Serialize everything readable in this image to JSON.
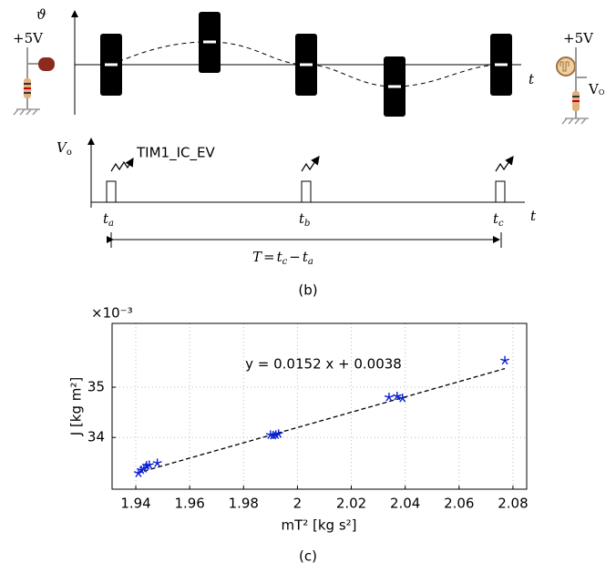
{
  "diagram": {
    "theta_axis": "ϑ",
    "t_axis_top": "t",
    "supply_left": "+5V",
    "supply_right": "+5V",
    "vo_right": {
      "base": "V",
      "sub": "O"
    },
    "vo_axis": {
      "base": "V",
      "sub": "o"
    },
    "event": "TIM1_IC_EV",
    "t_a": {
      "base": "t",
      "sub": "a"
    },
    "t_b": {
      "base": "t",
      "sub": "b"
    },
    "t_c": {
      "base": "t",
      "sub": "c"
    },
    "t_axis_bottom": "t",
    "period": [
      "T",
      "=",
      "t",
      "c",
      "−",
      "t",
      "a"
    ],
    "caption": "(b)"
  },
  "chart_data": {
    "type": "scatter",
    "scale_label": "×10⁻³",
    "equation": "y = 0.0152 x + 0.0038",
    "xlabel": "mT² [kg s²]",
    "ylabel": "J [kg m²]",
    "x": [
      1.941,
      1.942,
      1.943,
      1.944,
      1.945,
      1.948,
      1.99,
      1.991,
      1.992,
      1.993,
      2.034,
      2.037,
      2.039,
      2.077
    ],
    "values": [
      33.29,
      33.35,
      33.38,
      33.44,
      33.45,
      33.49,
      34.05,
      34.04,
      34.05,
      34.07,
      34.8,
      34.82,
      34.78,
      35.53
    ],
    "color": "#0a1ed2",
    "fit": {
      "x": [
        1.943,
        2.077
      ],
      "values": [
        33.33,
        35.37
      ],
      "color": "#000000"
    },
    "xlim": [
      1.9312,
      2.0851
    ],
    "ylim": [
      32.97,
      36.27
    ],
    "xticks": [
      1.94,
      1.96,
      1.98,
      2,
      2.02,
      2.04,
      2.06,
      2.08
    ],
    "yticks": [
      34,
      35
    ],
    "grid": true,
    "caption": "(c)"
  }
}
